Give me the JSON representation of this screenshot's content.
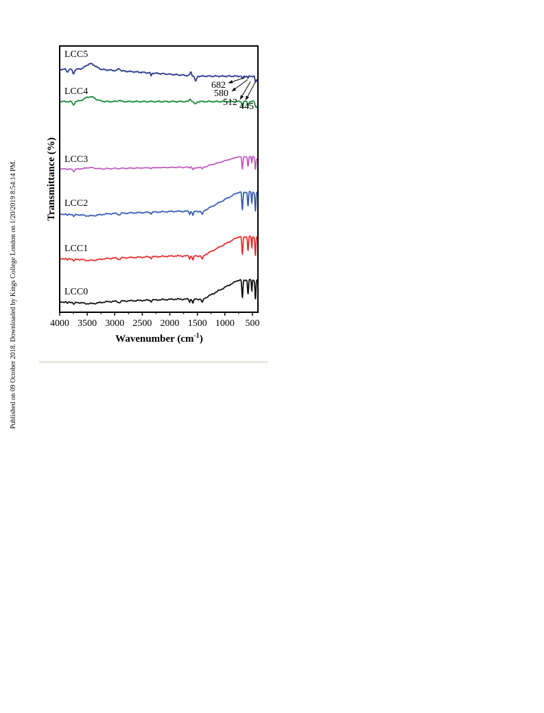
{
  "side_note": "Published on 09 October 2018. Downloaded by Kings College London on 1/20/2019 8:54:14 PM.",
  "colors": {
    "LCC0": "#111111",
    "LCC1": "#e8302f",
    "LCC2": "#3a5fb8",
    "LCC3": "#c060c0",
    "LCC4": "#1c8c3c",
    "LCC5": "#2c3a8e"
  },
  "chart_data": {
    "type": "line",
    "title": "",
    "xlabel_main": "Wavenumber (cm",
    "xlabel_sup": "-1",
    "xlabel_close": ")",
    "ylabel": "Transmittance (%)",
    "xlim": [
      4000,
      400
    ],
    "x_ticks": [
      4000,
      3500,
      3000,
      2500,
      2000,
      1500,
      1000,
      500
    ],
    "y_ticks_shown": false,
    "grid": false,
    "series_labels": [
      "LCC5",
      "LCC4",
      "LCC3",
      "LCC2",
      "LCC1",
      "LCC0"
    ],
    "annotations": [
      "682",
      "580",
      "512",
      "445"
    ]
  }
}
